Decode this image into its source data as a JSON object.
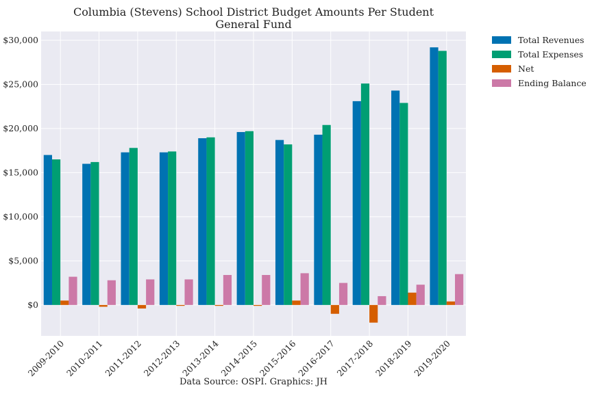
{
  "chart_data": {
    "type": "bar",
    "title": "Columbia (Stevens) School District Budget Amounts Per Student",
    "subtitle": "General Fund",
    "source": "Data Source: OSPI. Graphics: JH",
    "xlabel": "",
    "ylabel": "",
    "ylim": [
      -3500,
      31000
    ],
    "yticks": [
      0,
      5000,
      10000,
      15000,
      20000,
      25000,
      30000
    ],
    "ytick_labels": [
      "$0",
      "$5,000",
      "$10,000",
      "$15,000",
      "$20,000",
      "$25,000",
      "$30,000"
    ],
    "grid": true,
    "legend_placement": "outside-top-right",
    "categories": [
      "2009-2010",
      "2010-2011",
      "2011-2012",
      "2012-2013",
      "2013-2014",
      "2014-2015",
      "2015-2016",
      "2016-2017",
      "2017-2018",
      "2018-2019",
      "2019-2020"
    ],
    "series": [
      {
        "name": "Total Revenues",
        "color": "#0072b2",
        "values": [
          17000,
          16000,
          17300,
          17300,
          18900,
          19600,
          18700,
          19300,
          23100,
          24300,
          29200
        ]
      },
      {
        "name": "Total Expenses",
        "color": "#009e73",
        "values": [
          16500,
          16200,
          17800,
          17400,
          19000,
          19700,
          18200,
          20400,
          25100,
          22900,
          28800
        ]
      },
      {
        "name": "Net",
        "color": "#d55e00",
        "values": [
          500,
          -200,
          -400,
          -100,
          -100,
          -100,
          500,
          -1000,
          -2000,
          1400,
          400
        ]
      },
      {
        "name": "Ending Balance",
        "color": "#cc79a7",
        "values": [
          3200,
          2800,
          2900,
          2900,
          3400,
          3400,
          3600,
          2500,
          1000,
          2300,
          3500
        ]
      }
    ]
  }
}
